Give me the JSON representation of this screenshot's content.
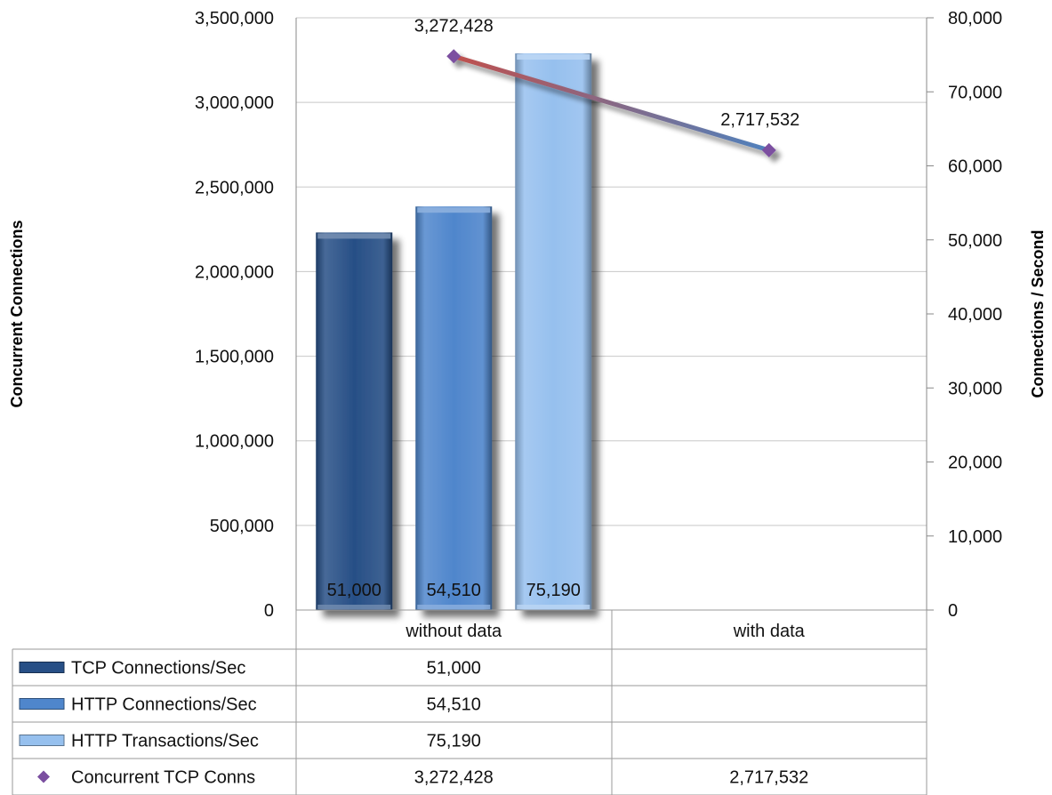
{
  "chart_data": {
    "type": "bar",
    "categories": [
      "without data",
      "with data"
    ],
    "series": [
      {
        "name": "TCP Connections/Sec",
        "kind": "bar",
        "axis": "right",
        "values": [
          51000,
          null
        ],
        "color": "#274f86"
      },
      {
        "name": "HTTP Connections/Sec",
        "kind": "bar",
        "axis": "right",
        "values": [
          54510,
          null
        ],
        "color": "#4f86cc"
      },
      {
        "name": "HTTP Transactions/Sec",
        "kind": "bar",
        "axis": "right",
        "values": [
          75190,
          null
        ],
        "color": "#96c0ee"
      },
      {
        "name": "Concurrent TCP Conns",
        "kind": "line",
        "axis": "left",
        "values": [
          3272428,
          2717532
        ],
        "color_start": "#c0504d",
        "color_end": "#4f81bd",
        "marker_color": "#7b4fa0"
      }
    ],
    "bar_labels": [
      "51,000",
      "54,510",
      "75,190"
    ],
    "line_labels": [
      "3,272,428",
      "2,717,532"
    ],
    "y_left": {
      "label": "Concurrent Connections",
      "ylim": [
        0,
        3500000
      ],
      "ticks": [
        "0",
        "500,000",
        "1,000,000",
        "1,500,000",
        "2,000,000",
        "2,500,000",
        "3,000,000",
        "3,500,000"
      ]
    },
    "y_right": {
      "label": "Connections / Second",
      "ylim": [
        0,
        80000
      ],
      "ticks": [
        "0",
        "10,000",
        "20,000",
        "30,000",
        "40,000",
        "50,000",
        "60,000",
        "70,000",
        "80,000"
      ]
    },
    "data_table": {
      "rows": [
        {
          "name": "TCP Connections/Sec",
          "cells": [
            "51,000",
            ""
          ]
        },
        {
          "name": "HTTP Connections/Sec",
          "cells": [
            "54,510",
            ""
          ]
        },
        {
          "name": "HTTP Transactions/Sec",
          "cells": [
            "75,190",
            ""
          ]
        },
        {
          "name": "Concurrent TCP Conns",
          "cells": [
            "3,272,428",
            "2,717,532"
          ]
        }
      ]
    },
    "grid": true,
    "legend": "data-table"
  }
}
